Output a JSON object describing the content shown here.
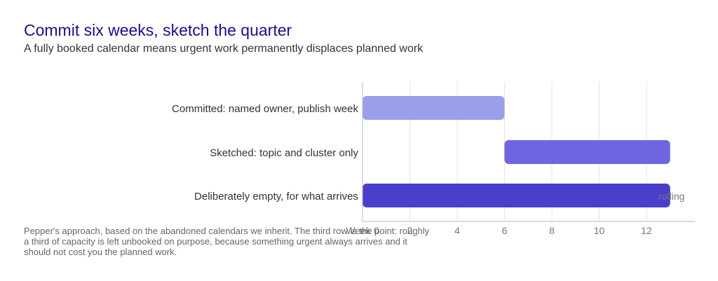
{
  "title": "Commit six weeks, sketch the quarter",
  "subtitle": "A fully booked calendar means urgent work permanently displaces planned work",
  "footnote": "Pepper's approach, based on the abandoned calendars we inherit. The third row is the point: roughly a third of capacity is left unbooked on purpose, because something urgent always arrives and it should not cost you the planned work.",
  "chart_data": {
    "type": "bar",
    "orientation": "horizontal",
    "categories": [
      "Committed: named owner, publish week",
      "Sketched: topic and cluster only",
      "Deliberately empty, for what arrives"
    ],
    "bars": [
      {
        "category": "Committed: named owner, publish week",
        "start": 0,
        "end": 6,
        "color": "#9b9feb"
      },
      {
        "category": "Sketched: topic and cluster only",
        "start": 6,
        "end": 13,
        "color": "#6e66e0"
      },
      {
        "category": "Deliberately empty, for what arrives",
        "start": 0,
        "end": 13,
        "color": "#4a3fcb",
        "label": "rolling"
      }
    ],
    "xticks": [
      0,
      2,
      4,
      6,
      8,
      10,
      12
    ],
    "tick_labels": [
      "Week 0",
      "2",
      "4",
      "6",
      "8",
      "10",
      "12"
    ],
    "xlim": [
      0,
      14
    ],
    "grid": true,
    "colors": {
      "grid": "#e4e4e4",
      "axis": "#bbbbbb",
      "tick_text": "#777777",
      "category_text": "#333333",
      "data_label": "#777777"
    }
  }
}
